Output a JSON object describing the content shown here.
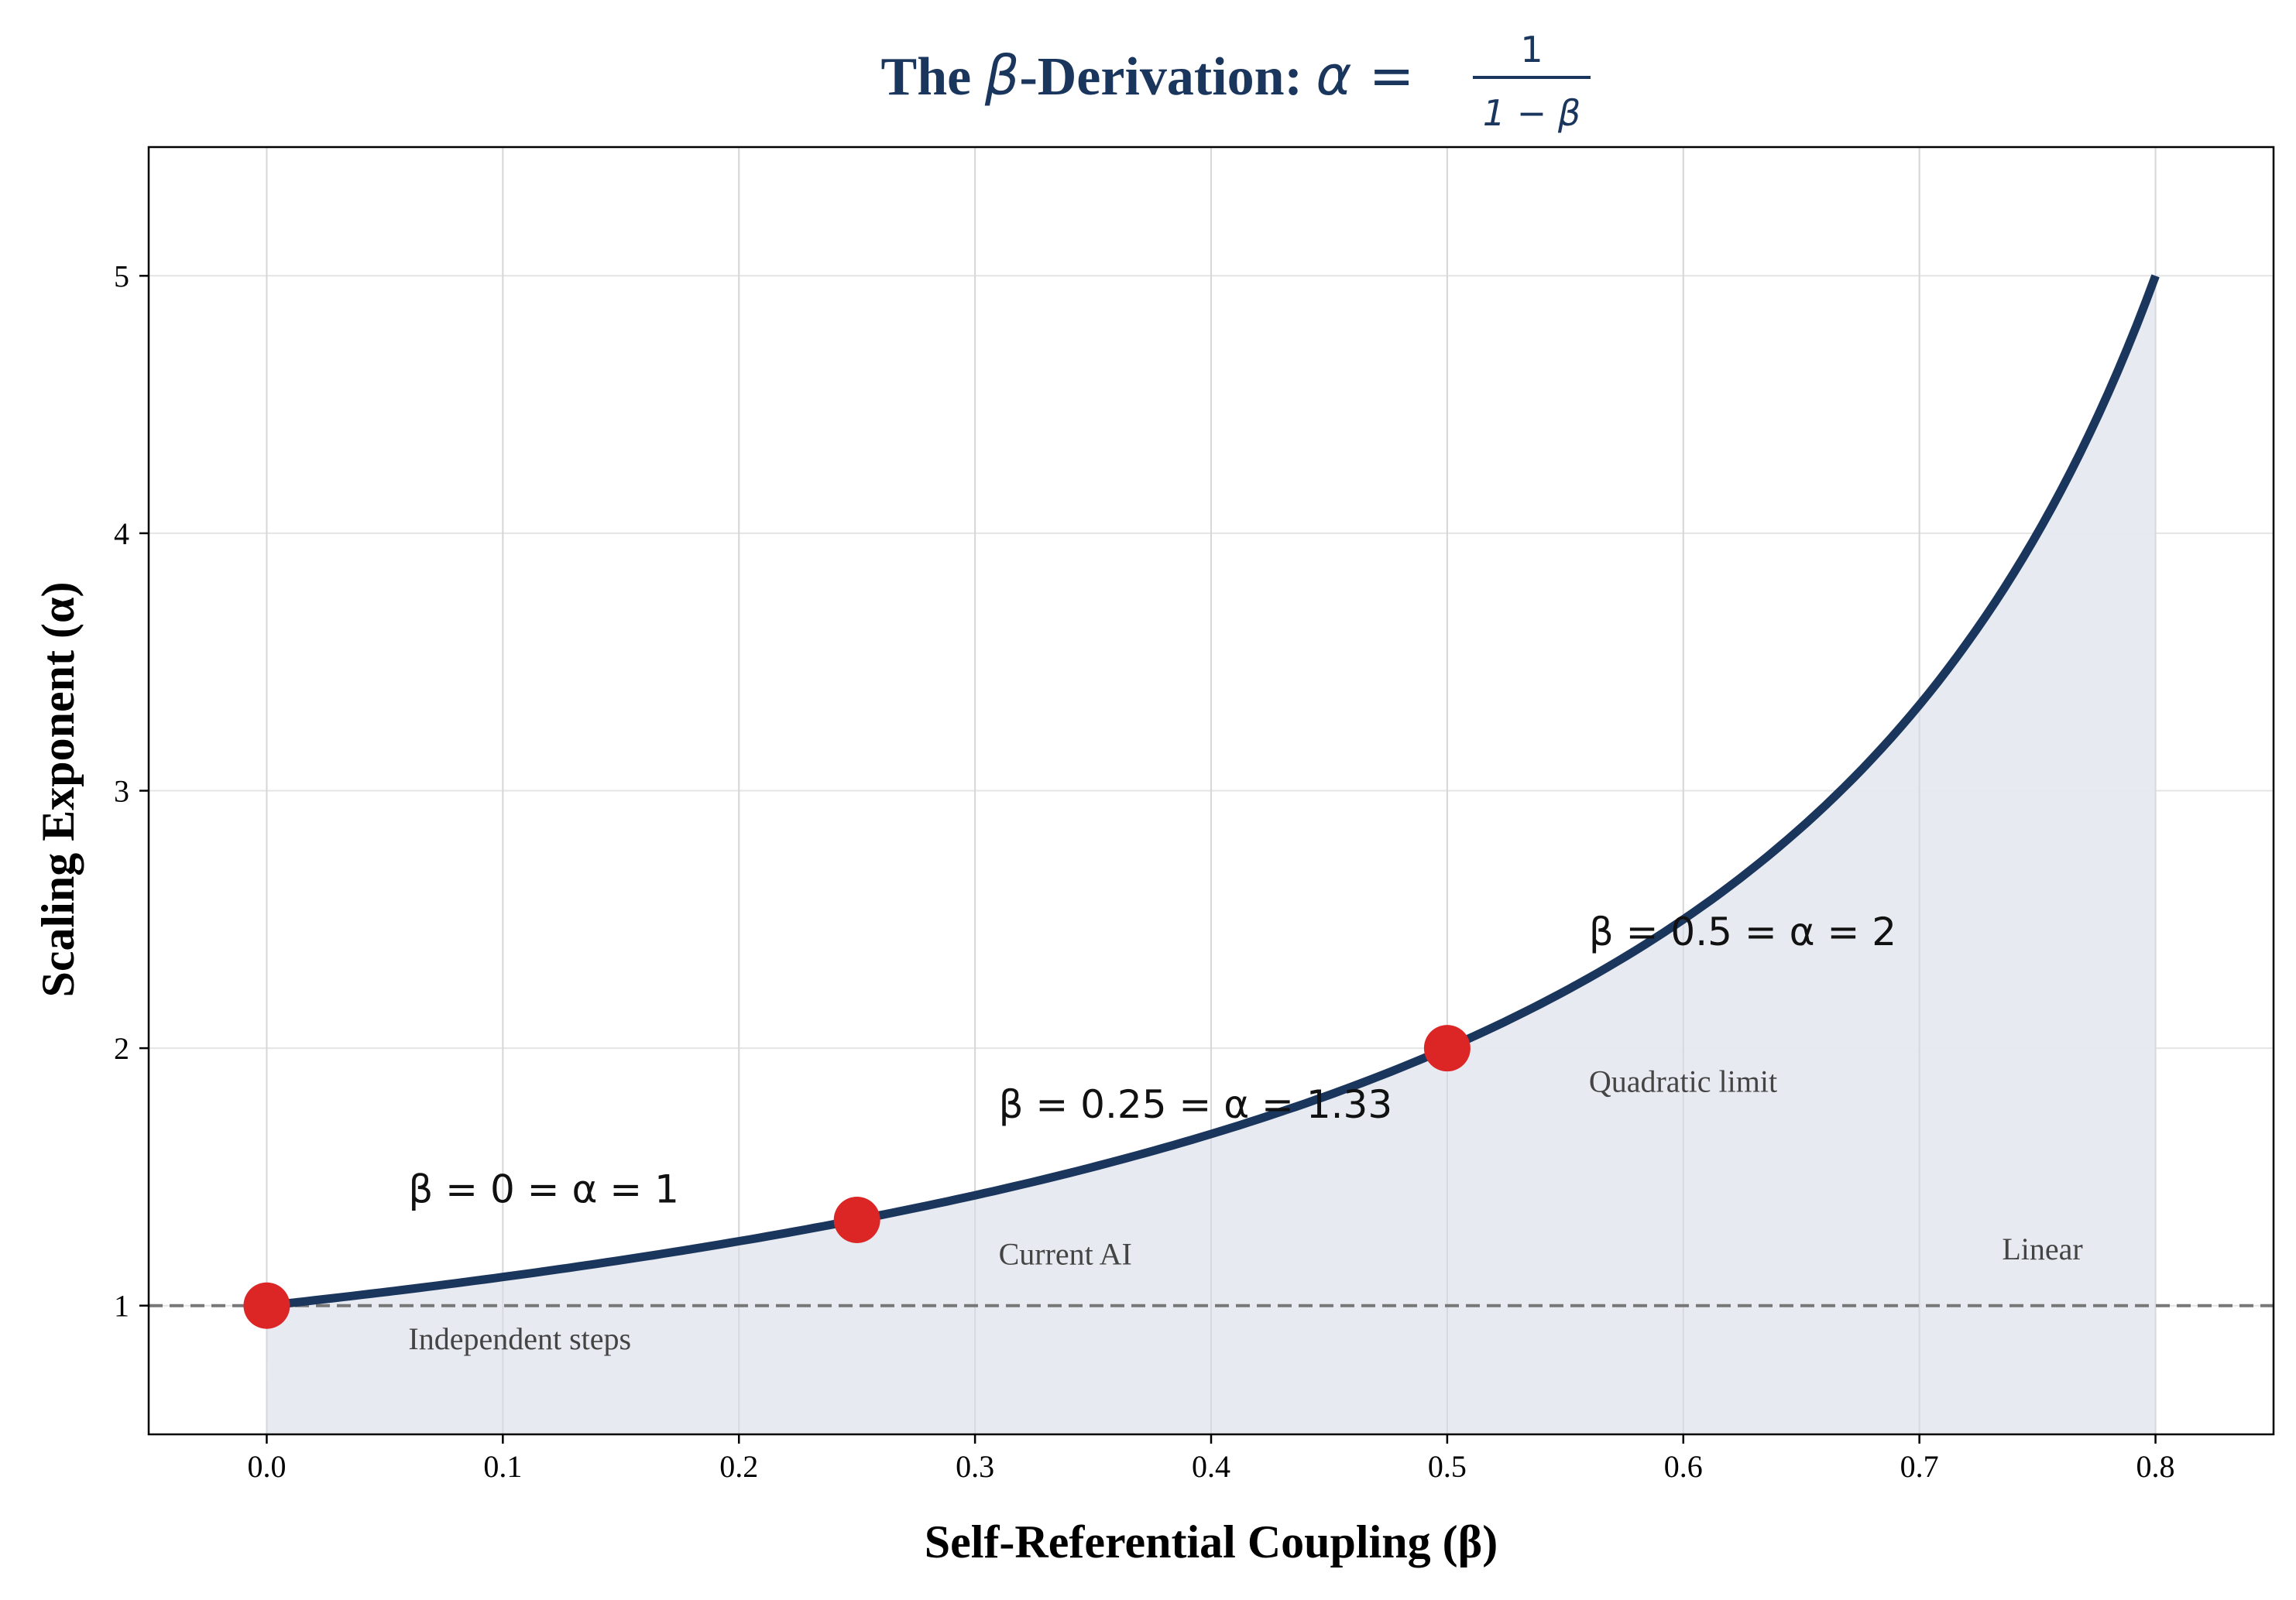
{
  "chart_data": {
    "type": "line",
    "title": "The β-Derivation: α = 1/(1−β)",
    "title_parts": {
      "prefix": "The ",
      "beta": "β",
      "mid": "-Derivation: ",
      "lhs": "α =",
      "numerator": "1",
      "denominator": "1 − β"
    },
    "xlabel": "Self-Referential Coupling (β)",
    "ylabel": "Scaling Exponent (α)",
    "xlim": [
      -0.05,
      0.85
    ],
    "ylim": [
      0.5,
      5.5
    ],
    "xticks": [
      0.0,
      0.1,
      0.2,
      0.3,
      0.4,
      0.5,
      0.6,
      0.7,
      0.8
    ],
    "xtick_labels": [
      "0.0",
      "0.1",
      "0.2",
      "0.3",
      "0.4",
      "0.5",
      "0.6",
      "0.7",
      "0.8"
    ],
    "yticks": [
      1,
      2,
      3,
      4,
      5
    ],
    "ytick_labels": [
      "1",
      "2",
      "3",
      "4",
      "5"
    ],
    "grid": true,
    "series": [
      {
        "function": "alpha = 1/(1-beta)",
        "x_range": [
          0,
          0.8
        ],
        "color": "#1b365d",
        "fill_below": true,
        "fill_color": "#e6e9ef"
      }
    ],
    "reference_line": {
      "y": 1,
      "style": "dashed",
      "color": "#777777"
    },
    "points": [
      {
        "x": 0,
        "y": 1,
        "color": "#dc2626"
      },
      {
        "x": 0.25,
        "y": 1.333,
        "color": "#dc2626"
      },
      {
        "x": 0.5,
        "y": 2,
        "color": "#dc2626"
      }
    ],
    "annotations": [
      {
        "text": "β = 0 = α = 1",
        "x": 0.06,
        "y": 1.4,
        "kind": "equation"
      },
      {
        "text": "β = 0.25 = α = 1.33",
        "x": 0.31,
        "y": 1.73,
        "kind": "equation"
      },
      {
        "text": "β = 0.5 = α = 2",
        "x": 0.56,
        "y": 2.4,
        "kind": "equation"
      },
      {
        "text": "Independent steps",
        "x": 0.06,
        "y": 0.83,
        "kind": "label"
      },
      {
        "text": "Current AI",
        "x": 0.31,
        "y": 1.16,
        "kind": "label"
      },
      {
        "text": "Quadratic limit",
        "x": 0.56,
        "y": 1.83,
        "kind": "label"
      },
      {
        "text": "Linear",
        "x": 0.735,
        "y": 1.18,
        "kind": "label"
      }
    ]
  }
}
